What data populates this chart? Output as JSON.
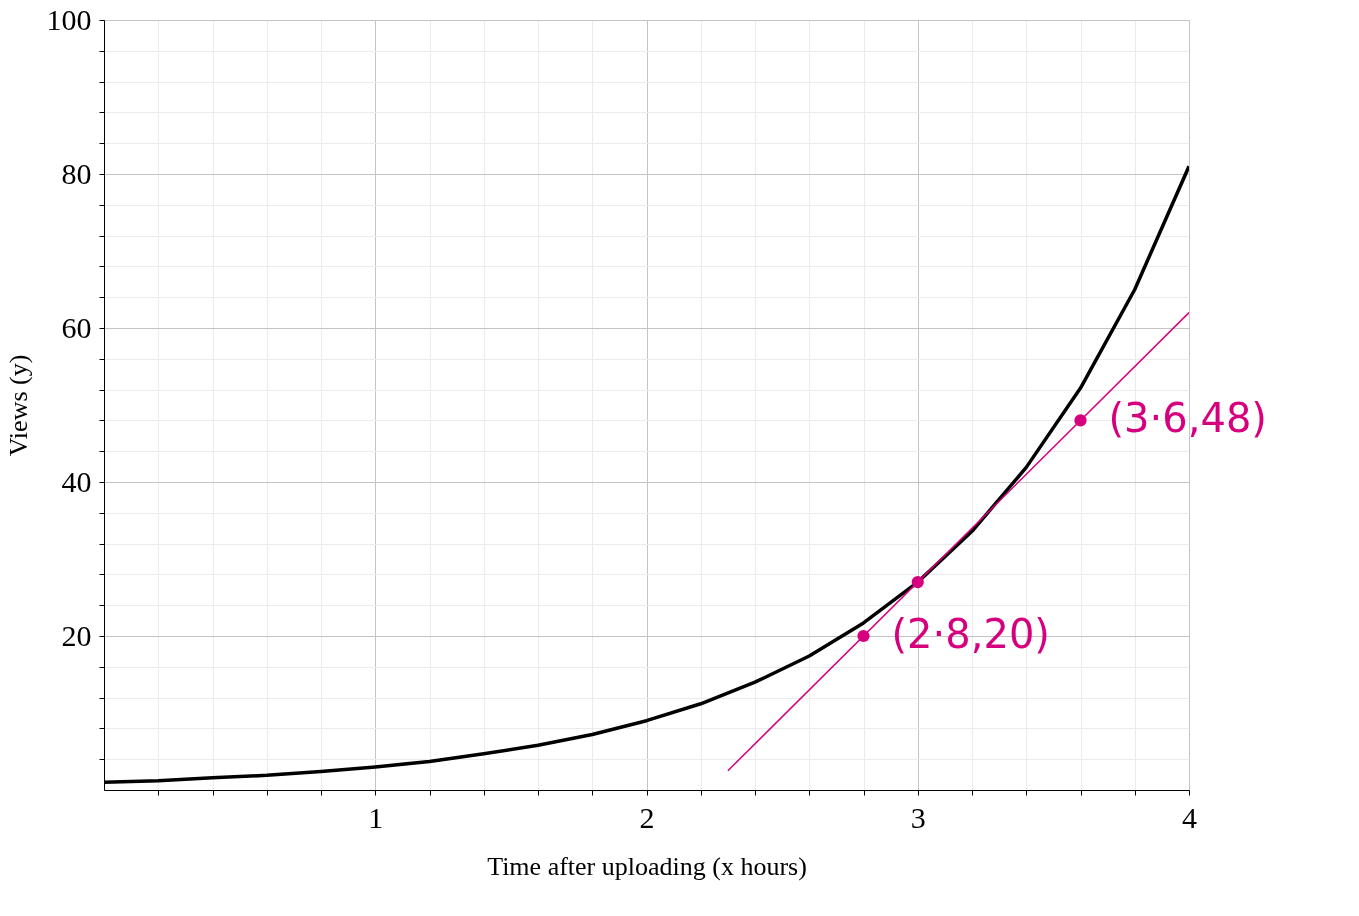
{
  "chart_data": {
    "type": "line",
    "xlabel": "Time after uploading (x hours)",
    "ylabel": "Views (y)",
    "xlim": [
      0,
      4
    ],
    "ylim": [
      0,
      100
    ],
    "xticks": [
      {
        "value": 0.2,
        "label": null
      },
      {
        "value": 0.4,
        "label": null
      },
      {
        "value": 0.6,
        "label": null
      },
      {
        "value": 0.8,
        "label": null
      },
      1,
      {
        "value": 1.2,
        "label": null
      },
      {
        "value": 1.4,
        "label": null
      },
      {
        "value": 1.6,
        "label": null
      },
      {
        "value": 1.8,
        "label": null
      },
      2,
      {
        "value": 2.2,
        "label": null
      },
      {
        "value": 2.4,
        "label": null
      },
      {
        "value": 2.6,
        "label": null
      },
      {
        "value": 2.8,
        "label": null
      },
      3,
      {
        "value": 3.2,
        "label": null
      },
      {
        "value": 3.4,
        "label": null
      },
      {
        "value": 3.6,
        "label": null
      },
      {
        "value": 3.8,
        "label": null
      },
      4
    ],
    "yticks": [
      {
        "value": 4,
        "label": null
      },
      {
        "value": 8,
        "label": null
      },
      {
        "value": 12,
        "label": null
      },
      {
        "value": 16,
        "label": null
      },
      20,
      {
        "value": 24,
        "label": null
      },
      {
        "value": 28,
        "label": null
      },
      {
        "value": 32,
        "label": null
      },
      {
        "value": 36,
        "label": null
      },
      40,
      {
        "value": 44,
        "label": null
      },
      {
        "value": 48,
        "label": null
      },
      {
        "value": 52,
        "label": null
      },
      {
        "value": 56,
        "label": null
      },
      60,
      {
        "value": 64,
        "label": null
      },
      {
        "value": 68,
        "label": null
      },
      {
        "value": 72,
        "label": null
      },
      {
        "value": 76,
        "label": null
      },
      80,
      {
        "value": 84,
        "label": null
      },
      {
        "value": 88,
        "label": null
      },
      {
        "value": 92,
        "label": null
      },
      {
        "value": 96,
        "label": null
      },
      100
    ],
    "grid": true,
    "line_style": "solid",
    "series": [
      {
        "color": "#000000",
        "x": [
          0,
          0.2,
          0.4,
          0.6,
          0.8,
          1,
          1.2,
          1.4,
          1.6,
          1.8,
          2,
          2.2,
          2.4,
          2.6,
          2.8,
          3,
          3.2,
          3.4,
          3.6,
          3.8,
          4
        ],
        "values": [
          1,
          1.2,
          1.6,
          1.9,
          2.4,
          3,
          3.7,
          4.7,
          5.8,
          7.2,
          9,
          11.2,
          14,
          17.4,
          21.7,
          27,
          33.6,
          41.9,
          52.2,
          65,
          81
        ]
      },
      {
        "color": "#d6007f",
        "x": [
          2.3,
          4
        ],
        "values": [
          2.5,
          62
        ]
      },
      {
        "type": "scatter",
        "color": "#d6007f",
        "marker": "circle",
        "x": [
          2.8,
          3,
          3.6
        ],
        "values": [
          20,
          27,
          48
        ]
      }
    ],
    "annotations": [
      {
        "text": "(2·8,20)",
        "x": 2.8,
        "y": 20
      },
      {
        "text": "(3·6,48)",
        "x": 3.6,
        "y": 48
      }
    ]
  }
}
